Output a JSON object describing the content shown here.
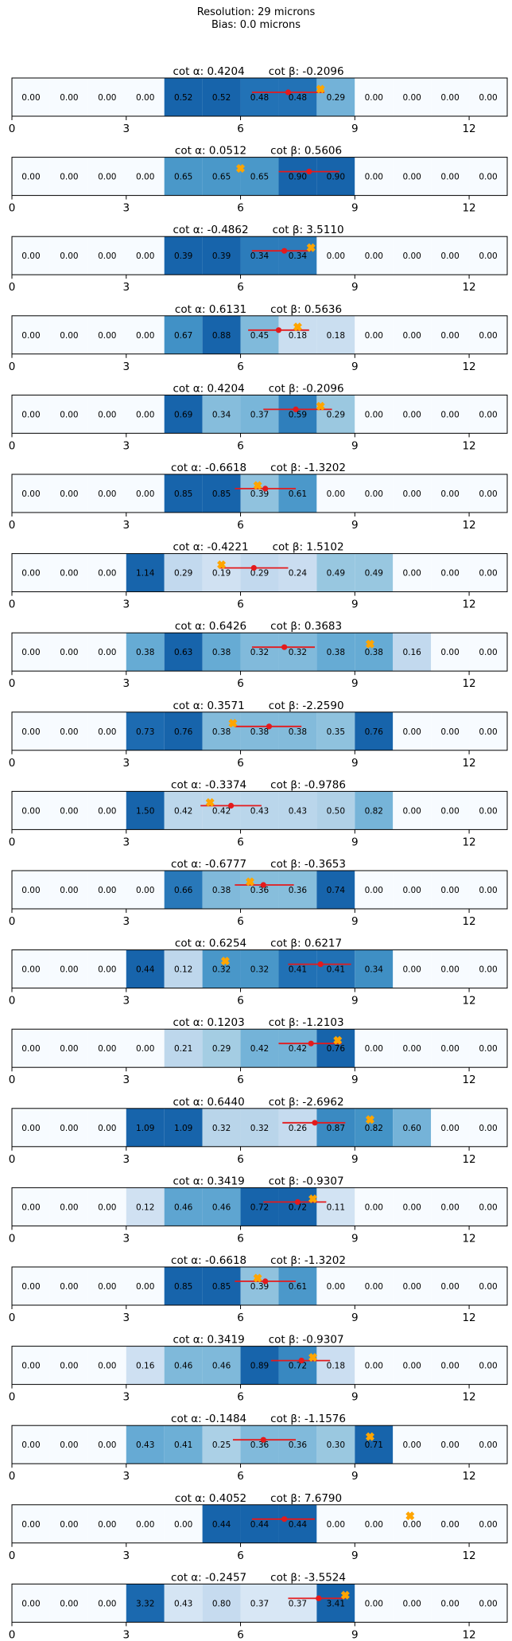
{
  "header": {
    "resolution": "Resolution: 29 microns",
    "bias": "Bias: 0.0 microns"
  },
  "chart_data": {
    "type": "heatmap",
    "title": "Resolution: 29 microns",
    "subtitle": "Bias: 0.0 microns",
    "xlim": [
      0,
      13
    ],
    "xticks": [
      0,
      3,
      6,
      9,
      12
    ],
    "colormap": "Blues",
    "colors": {
      "marker_true": "#ffa500",
      "marker_pred": "#e41a1c",
      "errorbar": "#e41a1c",
      "frame": "#000000"
    },
    "panels": [
      {
        "cot_alpha": "0.4204",
        "cot_beta": "-0.2096",
        "values": [
          0.0,
          0.0,
          0.0,
          0.0,
          0.52,
          0.52,
          0.48,
          0.48,
          0.29,
          0.0,
          0.0,
          0.0,
          0.0
        ],
        "true_x": 8.1,
        "pred_x": 7.25,
        "err_lo": 6.3,
        "err_hi": 8.2
      },
      {
        "cot_alpha": "0.0512",
        "cot_beta": "0.5606",
        "values": [
          0.0,
          0.0,
          0.0,
          0.0,
          0.65,
          0.65,
          0.65,
          0.9,
          0.9,
          0.0,
          0.0,
          0.0,
          0.0
        ],
        "true_x": 6.0,
        "pred_x": 7.8,
        "err_lo": 7.0,
        "err_hi": 8.6
      },
      {
        "cot_alpha": "-0.4862",
        "cot_beta": "3.5110",
        "values": [
          0.0,
          0.0,
          0.0,
          0.0,
          0.39,
          0.39,
          0.34,
          0.34,
          0.0,
          0.0,
          0.0,
          0.0,
          0.0
        ],
        "true_x": 7.85,
        "pred_x": 7.15,
        "err_lo": 6.3,
        "err_hi": 7.85
      },
      {
        "cot_alpha": "0.6131",
        "cot_beta": "0.5636",
        "values": [
          0.0,
          0.0,
          0.0,
          0.0,
          0.67,
          0.88,
          0.45,
          0.18,
          0.18,
          0.0,
          0.0,
          0.0,
          0.0
        ],
        "true_x": 7.5,
        "pred_x": 7.0,
        "err_lo": 6.2,
        "err_hi": 7.8
      },
      {
        "cot_alpha": "0.4204",
        "cot_beta": "-0.2096",
        "values": [
          0.0,
          0.0,
          0.0,
          0.0,
          0.69,
          0.34,
          0.37,
          0.59,
          0.29,
          0.0,
          0.0,
          0.0,
          0.0
        ],
        "true_x": 8.1,
        "pred_x": 7.45,
        "err_lo": 6.6,
        "err_hi": 8.4
      },
      {
        "cot_alpha": "-0.6618",
        "cot_beta": "-1.3202",
        "values": [
          0.0,
          0.0,
          0.0,
          0.0,
          0.85,
          0.85,
          0.39,
          0.61,
          0.0,
          0.0,
          0.0,
          0.0,
          0.0
        ],
        "true_x": 6.45,
        "pred_x": 6.65,
        "err_lo": 5.85,
        "err_hi": 7.45
      },
      {
        "cot_alpha": "-0.4221",
        "cot_beta": "1.5102",
        "values": [
          0.0,
          0.0,
          0.0,
          1.14,
          0.29,
          0.19,
          0.29,
          0.24,
          0.49,
          0.49,
          0.0,
          0.0,
          0.0
        ],
        "true_x": 5.5,
        "pred_x": 6.35,
        "err_lo": 5.45,
        "err_hi": 7.25
      },
      {
        "cot_alpha": "0.6426",
        "cot_beta": "0.3683",
        "values": [
          0.0,
          0.0,
          0.0,
          0.38,
          0.63,
          0.38,
          0.32,
          0.32,
          0.38,
          0.38,
          0.16,
          0.0,
          0.0
        ],
        "true_x": 9.4,
        "pred_x": 7.15,
        "err_lo": 6.3,
        "err_hi": 7.95
      },
      {
        "cot_alpha": "0.3571",
        "cot_beta": "-2.2590",
        "values": [
          0.0,
          0.0,
          0.0,
          0.73,
          0.76,
          0.38,
          0.38,
          0.38,
          0.35,
          0.76,
          0.0,
          0.0,
          0.0
        ],
        "true_x": 5.8,
        "pred_x": 6.75,
        "err_lo": 5.85,
        "err_hi": 7.6
      },
      {
        "cot_alpha": "-0.3374",
        "cot_beta": "-0.9786",
        "values": [
          0.0,
          0.0,
          0.0,
          1.5,
          0.42,
          0.42,
          0.43,
          0.43,
          0.5,
          0.82,
          0.0,
          0.0,
          0.0
        ],
        "true_x": 5.2,
        "pred_x": 5.75,
        "err_lo": 4.95,
        "err_hi": 6.55
      },
      {
        "cot_alpha": "-0.6777",
        "cot_beta": "-0.3653",
        "values": [
          0.0,
          0.0,
          0.0,
          0.0,
          0.66,
          0.38,
          0.36,
          0.36,
          0.74,
          0.0,
          0.0,
          0.0,
          0.0
        ],
        "true_x": 6.25,
        "pred_x": 6.6,
        "err_lo": 5.85,
        "err_hi": 7.4
      },
      {
        "cot_alpha": "0.6254",
        "cot_beta": "0.6217",
        "values": [
          0.0,
          0.0,
          0.0,
          0.44,
          0.12,
          0.32,
          0.32,
          0.41,
          0.41,
          0.34,
          0.0,
          0.0,
          0.0
        ],
        "true_x": 5.6,
        "pred_x": 8.1,
        "err_lo": 7.25,
        "err_hi": 8.9
      },
      {
        "cot_alpha": "0.1203",
        "cot_beta": "-1.2103",
        "values": [
          0.0,
          0.0,
          0.0,
          0.0,
          0.21,
          0.29,
          0.42,
          0.42,
          0.76,
          0.0,
          0.0,
          0.0,
          0.0
        ],
        "true_x": 8.55,
        "pred_x": 7.85,
        "err_lo": 7.0,
        "err_hi": 8.65
      },
      {
        "cot_alpha": "0.6440",
        "cot_beta": "-2.6962",
        "values": [
          0.0,
          0.0,
          0.0,
          1.09,
          1.09,
          0.32,
          0.32,
          0.26,
          0.87,
          0.82,
          0.6,
          0.0,
          0.0
        ],
        "true_x": 9.4,
        "pred_x": 7.95,
        "err_lo": 7.1,
        "err_hi": 8.75
      },
      {
        "cot_alpha": "0.3419",
        "cot_beta": "-0.9307",
        "values": [
          0.0,
          0.0,
          0.0,
          0.12,
          0.46,
          0.46,
          0.72,
          0.72,
          0.11,
          0.0,
          0.0,
          0.0,
          0.0
        ],
        "true_x": 7.9,
        "pred_x": 7.5,
        "err_lo": 6.6,
        "err_hi": 8.25
      },
      {
        "cot_alpha": "-0.6618",
        "cot_beta": "-1.3202",
        "values": [
          0.0,
          0.0,
          0.0,
          0.0,
          0.85,
          0.85,
          0.39,
          0.61,
          0.0,
          0.0,
          0.0,
          0.0,
          0.0
        ],
        "true_x": 6.45,
        "pred_x": 6.65,
        "err_lo": 5.85,
        "err_hi": 7.45
      },
      {
        "cot_alpha": "0.3419",
        "cot_beta": "-0.9307",
        "values": [
          0.0,
          0.0,
          0.0,
          0.16,
          0.46,
          0.46,
          0.89,
          0.72,
          0.18,
          0.0,
          0.0,
          0.0,
          0.0
        ],
        "true_x": 7.9,
        "pred_x": 7.6,
        "err_lo": 6.8,
        "err_hi": 8.35
      },
      {
        "cot_alpha": "-0.1484",
        "cot_beta": "-1.1576",
        "values": [
          0.0,
          0.0,
          0.0,
          0.43,
          0.41,
          0.25,
          0.36,
          0.36,
          0.3,
          0.71,
          0.0,
          0.0,
          0.0
        ],
        "true_x": 9.4,
        "pred_x": 6.6,
        "err_lo": 5.8,
        "err_hi": 7.45
      },
      {
        "cot_alpha": "0.4052",
        "cot_beta": "7.6790",
        "values": [
          0.0,
          0.0,
          0.0,
          0.0,
          0.0,
          0.44,
          0.44,
          0.44,
          0.0,
          0.0,
          0.0,
          0.0,
          0.0
        ],
        "true_x": 10.45,
        "pred_x": 7.15,
        "err_lo": 6.3,
        "err_hi": 7.95
      },
      {
        "cot_alpha": "-0.2457",
        "cot_beta": "-3.5524",
        "values": [
          0.0,
          0.0,
          0.0,
          3.32,
          0.43,
          0.8,
          0.37,
          0.37,
          3.41,
          0.0,
          0.0,
          0.0,
          0.0
        ],
        "true_x": 8.75,
        "pred_x": 8.05,
        "err_lo": 7.25,
        "err_hi": 8.75
      }
    ]
  }
}
